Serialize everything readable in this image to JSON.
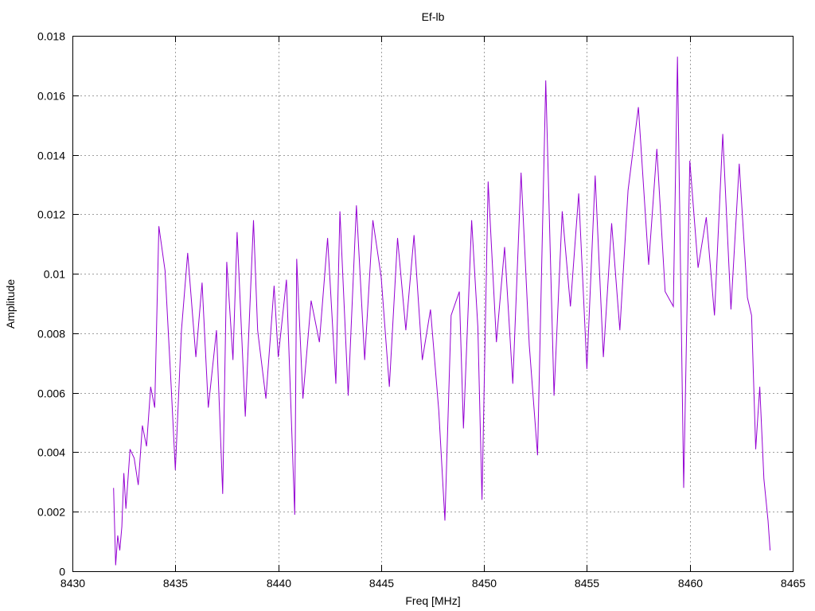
{
  "chart_data": {
    "type": "line",
    "title": "Ef-lb",
    "xlabel": "Freq [MHz]",
    "ylabel": "Amplitude",
    "xlim": [
      8430,
      8465
    ],
    "ylim": [
      0,
      0.018
    ],
    "xticks": [
      8430,
      8435,
      8440,
      8445,
      8450,
      8455,
      8460,
      8465
    ],
    "xtick_labels": [
      "8430",
      "8435",
      "8440",
      "8445",
      "8450",
      "8455",
      "8460",
      "8465"
    ],
    "yticks": [
      0,
      0.002,
      0.004,
      0.006,
      0.008,
      0.01,
      0.012,
      0.014,
      0.016,
      0.018
    ],
    "ytick_labels": [
      "0",
      "0.002",
      "0.004",
      "0.006",
      "0.008",
      "0.01",
      "0.012",
      "0.014",
      "0.016",
      "0.018"
    ],
    "grid": true,
    "line_color": "#9400d3",
    "series": [
      {
        "x": [
          8432.0,
          8432.1,
          8432.2,
          8432.3,
          8432.4,
          8432.5,
          8432.6,
          8432.8,
          8433.0,
          8433.2,
          8433.4,
          8433.6,
          8433.8,
          8434.0,
          8434.2,
          8434.5,
          8434.8,
          8435.0,
          8435.3,
          8435.6,
          8436.0,
          8436.3,
          8436.6,
          8437.0,
          8437.3,
          8437.5,
          8437.8,
          8438.0,
          8438.4,
          8438.8,
          8439.0,
          8439.4,
          8439.8,
          8440.0,
          8440.4,
          8440.8,
          8440.9,
          8441.2,
          8441.6,
          8442.0,
          8442.4,
          8442.8,
          8443.0,
          8443.4,
          8443.8,
          8444.2,
          8444.6,
          8445.0,
          8445.4,
          8445.8,
          8446.2,
          8446.6,
          8447.0,
          8447.4,
          8447.8,
          8448.1,
          8448.4,
          8448.8,
          8449.0,
          8449.4,
          8449.7,
          8449.9,
          8450.2,
          8450.6,
          8451.0,
          8451.4,
          8451.8,
          8452.2,
          8452.6,
          8453.0,
          8453.4,
          8453.8,
          8454.2,
          8454.6,
          8455.0,
          8455.4,
          8455.8,
          8456.2,
          8456.6,
          8457.0,
          8457.5,
          8458.0,
          8458.4,
          8458.8,
          8459.2,
          8459.4,
          8459.7,
          8460.0,
          8460.4,
          8460.8,
          8461.2,
          8461.6,
          8462.0,
          8462.4,
          8462.8,
          8463.0,
          8463.2,
          8463.4,
          8463.6,
          8463.8,
          8463.9
        ],
        "y": [
          0.0028,
          0.0002,
          0.0012,
          0.0007,
          0.0015,
          0.0033,
          0.0021,
          0.0041,
          0.0038,
          0.0029,
          0.0049,
          0.0042,
          0.0062,
          0.0055,
          0.0116,
          0.0101,
          0.0062,
          0.0034,
          0.0081,
          0.0107,
          0.0072,
          0.0097,
          0.0055,
          0.0081,
          0.0026,
          0.0104,
          0.0071,
          0.0114,
          0.0052,
          0.0118,
          0.0081,
          0.0058,
          0.0096,
          0.0072,
          0.0098,
          0.0019,
          0.0105,
          0.0058,
          0.0091,
          0.0077,
          0.0112,
          0.0063,
          0.0121,
          0.0059,
          0.0123,
          0.0071,
          0.0118,
          0.0099,
          0.0062,
          0.0112,
          0.0081,
          0.0113,
          0.0071,
          0.0088,
          0.0054,
          0.0017,
          0.0086,
          0.0094,
          0.0048,
          0.0118,
          0.0082,
          0.0024,
          0.0131,
          0.0077,
          0.0109,
          0.0063,
          0.0134,
          0.0076,
          0.0039,
          0.0165,
          0.0059,
          0.0121,
          0.0089,
          0.0127,
          0.0068,
          0.0133,
          0.0072,
          0.0117,
          0.0081,
          0.0128,
          0.0156,
          0.0103,
          0.0142,
          0.0094,
          0.0089,
          0.0173,
          0.0028,
          0.0138,
          0.0102,
          0.0119,
          0.0086,
          0.0147,
          0.0088,
          0.0137,
          0.0092,
          0.0086,
          0.0041,
          0.0062,
          0.0031,
          0.0017,
          0.0007
        ]
      }
    ]
  }
}
